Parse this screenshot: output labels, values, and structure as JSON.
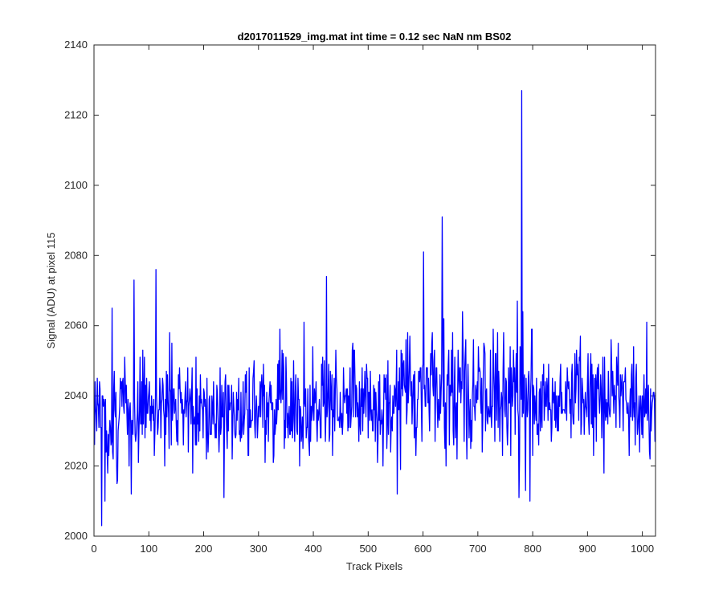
{
  "chart_data": {
    "type": "line",
    "title": "d2017011529_img.mat int time = 0.12 sec  NaN nm BS02",
    "xlabel": "Track Pixels",
    "ylabel": "Signal (ADU) at pixel 115",
    "xlim": [
      0,
      1024
    ],
    "ylim": [
      2000,
      2140
    ],
    "xticks": [
      0,
      100,
      200,
      300,
      400,
      500,
      600,
      700,
      800,
      900,
      1000
    ],
    "yticks": [
      2000,
      2020,
      2040,
      2060,
      2080,
      2100,
      2120,
      2140
    ],
    "grid": false,
    "series": [
      {
        "color": "#0000ff",
        "line_width": 1.3,
        "x_start": 1,
        "x_step": 1,
        "summary": {
          "count": 1024,
          "mean_early": 2034,
          "mean_late": 2041,
          "min": 2003,
          "max": 2127
        },
        "peaks": [
          {
            "x": 14,
            "y": 2003
          },
          {
            "x": 20,
            "y": 2010
          },
          {
            "x": 33,
            "y": 2065
          },
          {
            "x": 73,
            "y": 2073
          },
          {
            "x": 113,
            "y": 2076
          },
          {
            "x": 237,
            "y": 2011
          },
          {
            "x": 424,
            "y": 2074
          },
          {
            "x": 601,
            "y": 2081
          },
          {
            "x": 635,
            "y": 2091
          },
          {
            "x": 780,
            "y": 2127
          },
          {
            "x": 787,
            "y": 2013
          },
          {
            "x": 795,
            "y": 2010
          },
          {
            "x": 1008,
            "y": 2061
          }
        ]
      }
    ]
  }
}
